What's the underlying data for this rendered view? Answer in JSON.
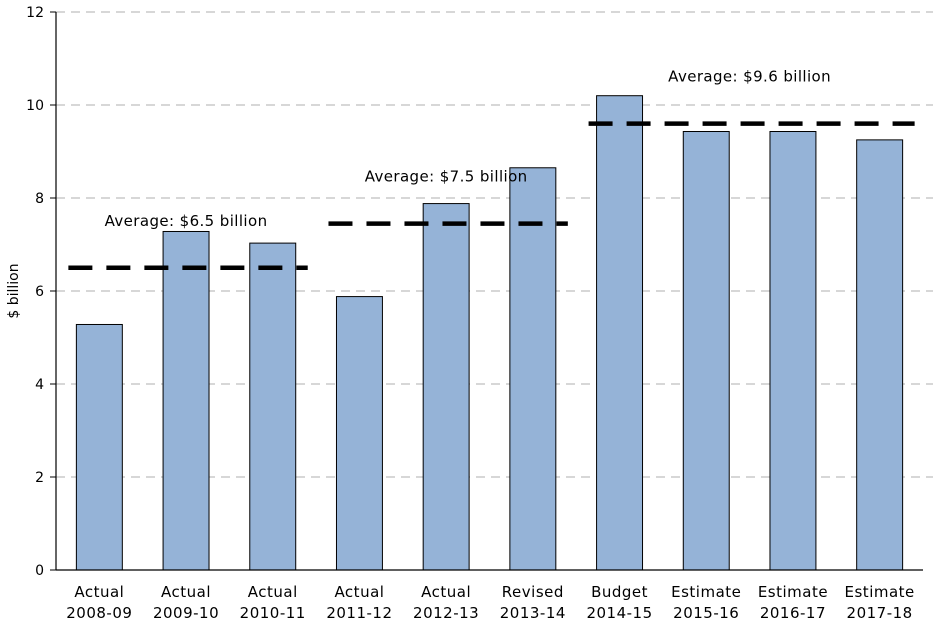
{
  "chart_data": {
    "type": "bar",
    "categories": [
      [
        "Actual",
        "2008-09"
      ],
      [
        "Actual",
        "2009-10"
      ],
      [
        "Actual",
        "2010-11"
      ],
      [
        "Actual",
        "2011-12"
      ],
      [
        "Actual",
        "2012-13"
      ],
      [
        "Revised",
        "2013-14"
      ],
      [
        "Budget",
        "2014-15"
      ],
      [
        "Estimate",
        "2015-16"
      ],
      [
        "Estimate",
        "2016-17"
      ],
      [
        "Estimate",
        "2017-18"
      ]
    ],
    "values": [
      5.28,
      7.28,
      7.03,
      5.88,
      7.88,
      8.65,
      10.2,
      9.43,
      9.43,
      9.25
    ],
    "ylabel": "$ billion",
    "xlabel": "",
    "ylim": [
      0,
      12
    ],
    "yticks": [
      0,
      2,
      4,
      6,
      8,
      10,
      12
    ],
    "grid": true,
    "bar_color": "#95b3d7",
    "averages": [
      {
        "label": "Average:  $6.5 billion",
        "value": 6.5,
        "start_index": 0,
        "end_index": 2
      },
      {
        "label": "Average:  $7.5 billion",
        "value": 7.45,
        "start_index": 3,
        "end_index": 5
      },
      {
        "label": "Average:  $9.6 billion",
        "value": 9.6,
        "start_index": 6,
        "end_index": 9
      }
    ]
  }
}
